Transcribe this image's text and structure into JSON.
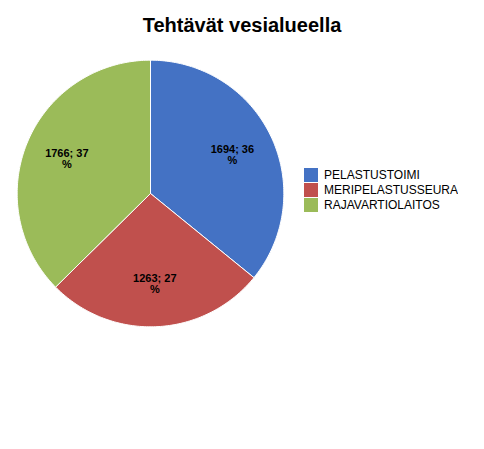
{
  "chart_data": {
    "type": "pie",
    "title": "Tehtävät vesialueella",
    "categories": [
      "PELASTUSTOIMI",
      "MERIPELASTUSSEURA",
      "RAJAVARTIOLAITOS"
    ],
    "values": [
      1694,
      1263,
      1766
    ],
    "value_labels": [
      "1694; 36\n%",
      "1263; 27\n%",
      "1766; 37\n%"
    ],
    "colors": [
      "#4472C4",
      "#C0504D",
      "#9BBB59"
    ],
    "data_labels": true,
    "legend": "right"
  }
}
